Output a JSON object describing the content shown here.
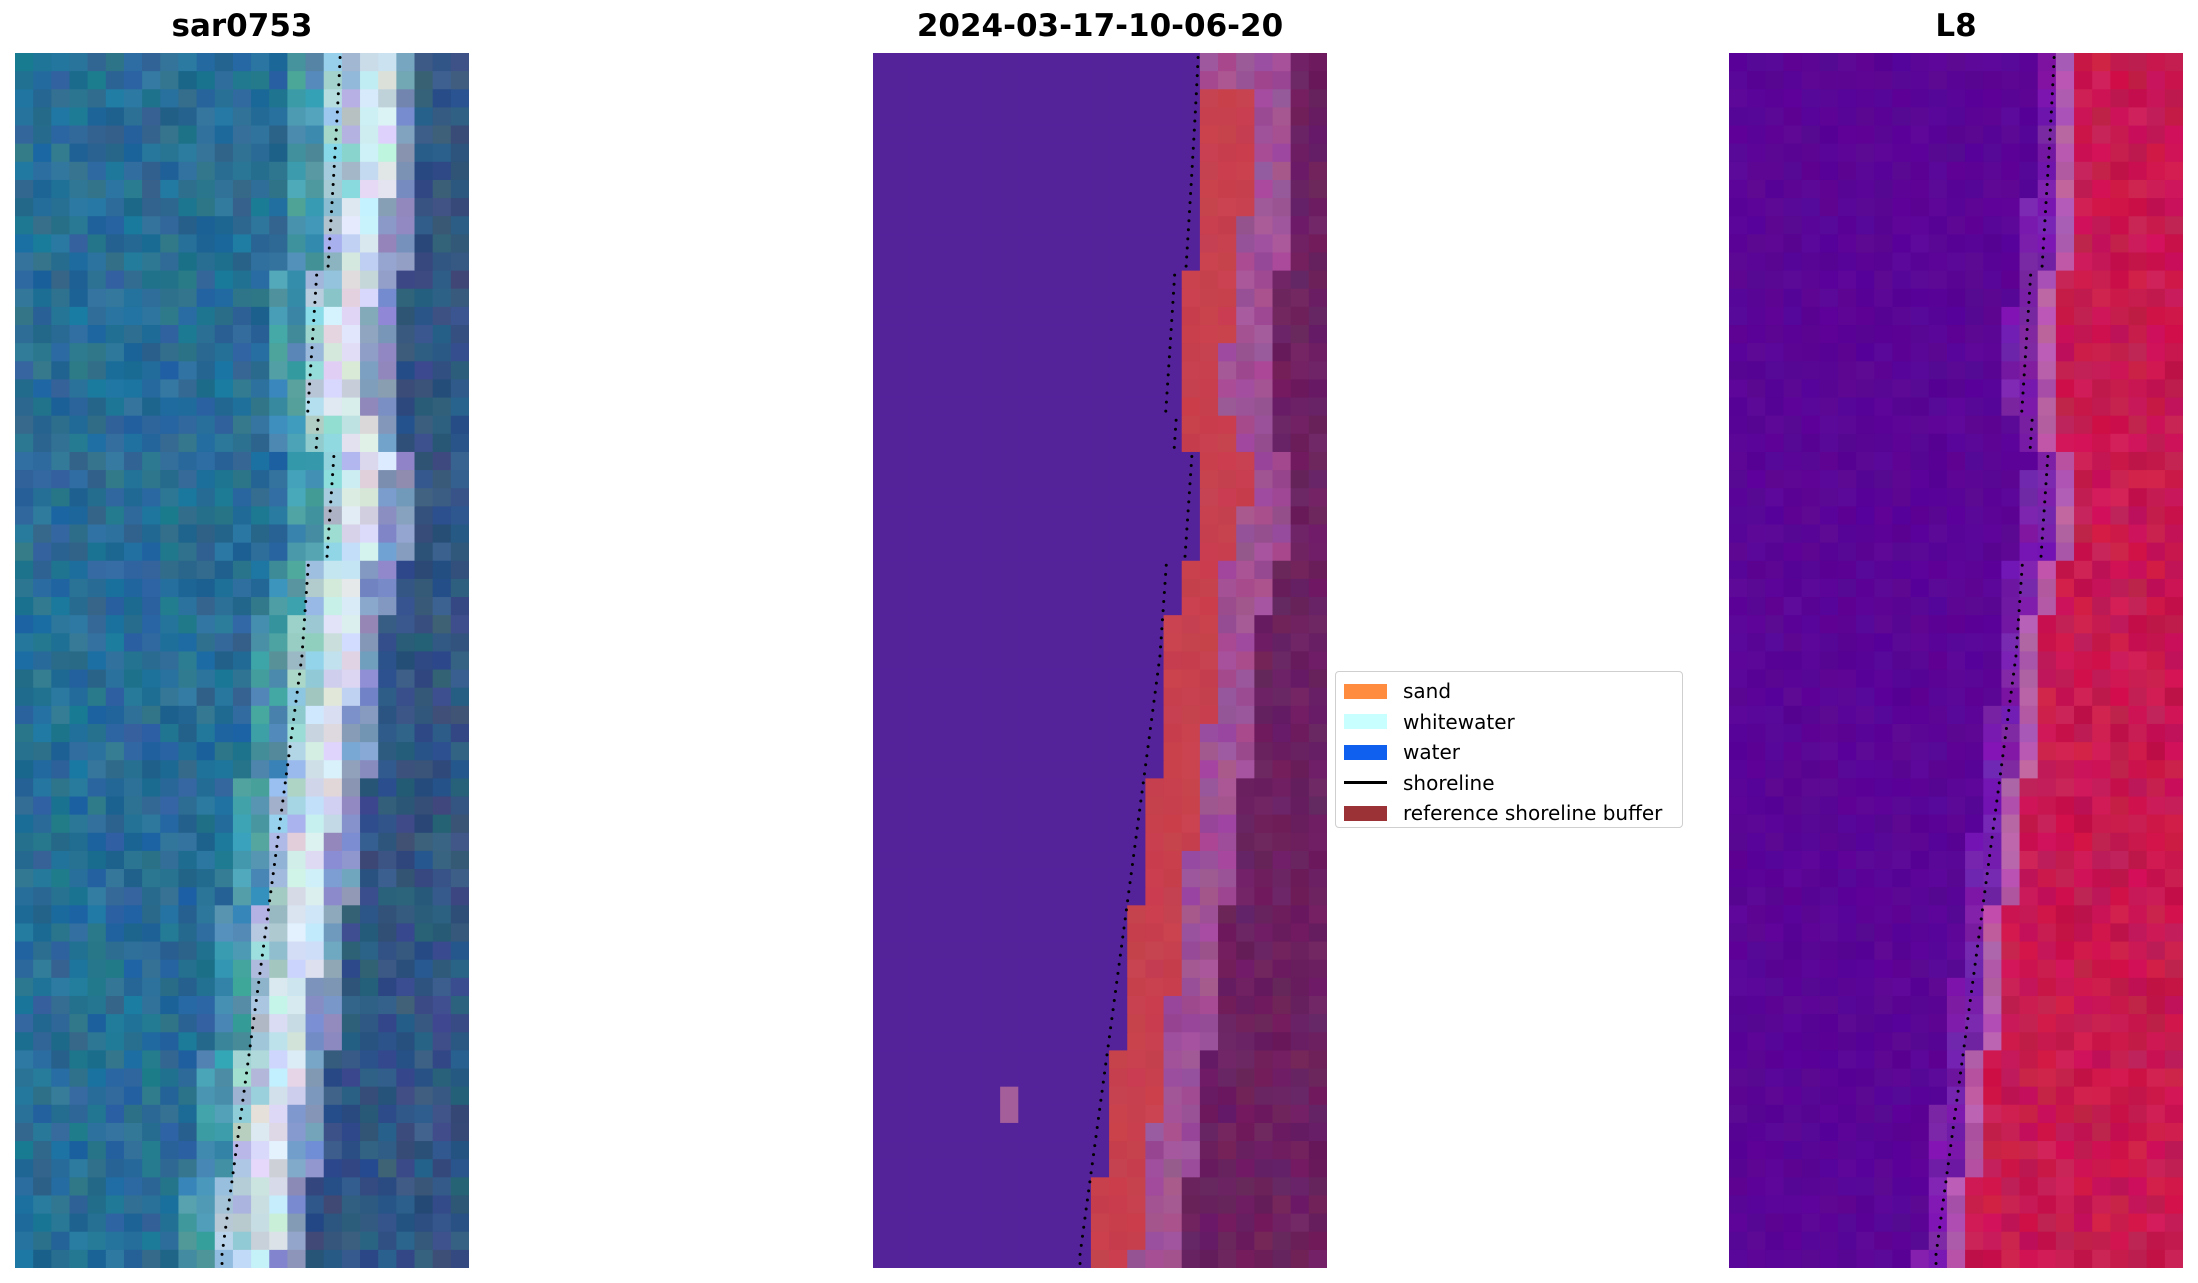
{
  "panels": [
    {
      "id": "rgb",
      "title": "sar0753",
      "colormap": "rgb"
    },
    {
      "id": "class",
      "title": "2024-03-17-10-06-20",
      "colormap": "classification"
    },
    {
      "id": "index",
      "title": "L8",
      "colormap": "index"
    }
  ],
  "legend": {
    "items": [
      {
        "label": "sand",
        "color": "#ff8c3f",
        "kind": "patch"
      },
      {
        "label": "whitewater",
        "color": "#c8ffff",
        "kind": "patch"
      },
      {
        "label": "water",
        "color": "#1060f0",
        "kind": "patch"
      },
      {
        "label": "shoreline",
        "color": "#000000",
        "kind": "line"
      },
      {
        "label": "reference shoreline buffer",
        "color": "#9b3336",
        "kind": "patch"
      }
    ]
  },
  "colors": {
    "background": "#ffffff",
    "class_water": "#54239a",
    "buffer": "#c9414f",
    "land_class": "#6b2060",
    "index_water": "#5a0599",
    "index_land": "#c8164f",
    "rgb_water": "#2a6e9a",
    "rgb_land": "#2f4f82"
  }
}
